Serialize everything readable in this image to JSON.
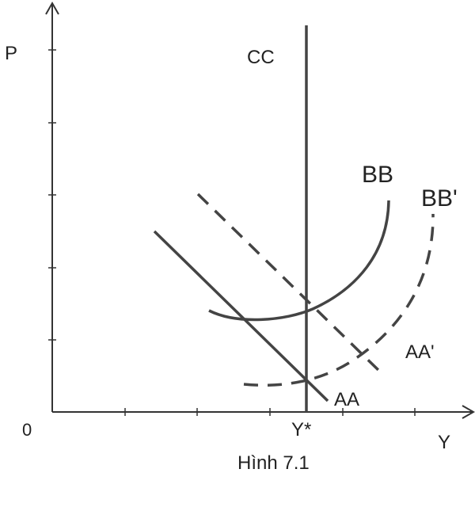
{
  "axes": {
    "y_label": "P",
    "x_label": "Y",
    "origin_label": "0",
    "x_marker_label": "Y*"
  },
  "curves": {
    "cc": "CC",
    "bb": "BB",
    "bb_prime": "BB'",
    "aa": "AA",
    "aa_prime": "AA'"
  },
  "caption": "Hình 7.1"
}
